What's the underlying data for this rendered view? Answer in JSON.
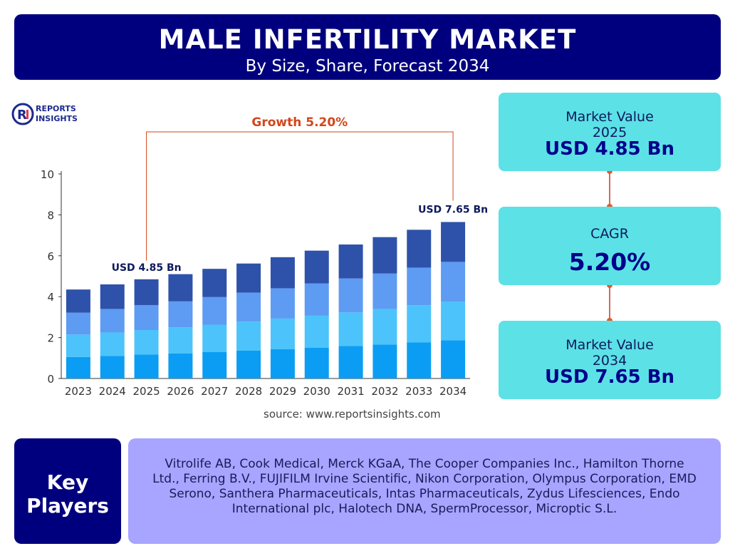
{
  "header": {
    "title": "MALE INFERTILITY MARKET",
    "subtitle": "By Size, Share, Forecast 2034"
  },
  "logo": {
    "line1": "REPORTS",
    "line2": "INSIGHTS"
  },
  "chart_data": {
    "type": "bar",
    "stacked": true,
    "categories": [
      "2023",
      "2024",
      "2025",
      "2026",
      "2027",
      "2028",
      "2029",
      "2030",
      "2031",
      "2032",
      "2033",
      "2034"
    ],
    "series": [
      {
        "values": [
          1.05,
          1.1,
          1.17,
          1.23,
          1.3,
          1.36,
          1.43,
          1.51,
          1.59,
          1.66,
          1.76,
          1.87
        ]
      },
      {
        "values": [
          1.1,
          1.15,
          1.2,
          1.27,
          1.33,
          1.42,
          1.5,
          1.56,
          1.64,
          1.74,
          1.82,
          1.88
        ]
      },
      {
        "values": [
          1.07,
          1.15,
          1.22,
          1.27,
          1.35,
          1.42,
          1.48,
          1.58,
          1.66,
          1.73,
          1.84,
          1.95
        ]
      },
      {
        "values": [
          1.13,
          1.2,
          1.26,
          1.33,
          1.38,
          1.42,
          1.52,
          1.6,
          1.66,
          1.78,
          1.85,
          1.95
        ]
      }
    ],
    "series_colors": [
      "#0b9df3",
      "#4cc3fa",
      "#5e9bf2",
      "#2e52aa"
    ],
    "ylim": [
      0,
      10
    ],
    "yticks": [
      0,
      2,
      4,
      6,
      8,
      10
    ],
    "grid": false,
    "annotations": {
      "start_label": "USD 4.85 Bn",
      "end_label": "USD 7.65 Bn",
      "growth_label": "Growth 5.20%"
    }
  },
  "panel": {
    "value_2025": {
      "label1": "Market Value",
      "label2": "2025",
      "value": "USD 4.85 Bn"
    },
    "cagr": {
      "label1": "CAGR",
      "value": "5.20%"
    },
    "value_2034": {
      "label1": "Market Value",
      "label2": "2034",
      "value": "USD 7.65 Bn"
    }
  },
  "source": "source: www.reportsinsights.com",
  "key_players": {
    "label_line1": "Key",
    "label_line2": "Players",
    "list": "Vitrolife AB, Cook Medical, Merck KGaA, The Cooper Companies Inc., Hamilton Thorne Ltd., Ferring B.V., FUJIFILM Irvine Scientific, Nikon Corporation, Olympus Corporation, EMD Serono, Santhera Pharmaceuticals, Intas Pharmaceuticals, Zydus Lifesciences, Endo International plc, Halotech DNA, SpermProcessor, Microptic S.L."
  },
  "colors": {
    "navy": "#00007e",
    "teal": "#5ce1e6",
    "lavender": "#a7a5ff",
    "growth": "#d2461b",
    "connector": "#c0392b"
  }
}
